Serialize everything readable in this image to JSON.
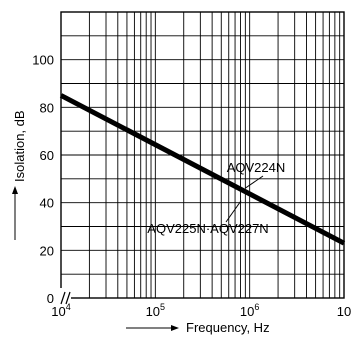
{
  "chart_data": {
    "type": "line",
    "xlabel": "Frequency, Hz",
    "ylabel": "Isolation, dB",
    "x_scale": "log",
    "xlim": [
      10000,
      10000000
    ],
    "ylim": [
      0,
      120
    ],
    "y_ticks": [
      "0",
      "20",
      "40",
      "60",
      "80",
      "100"
    ],
    "x_ticks": [
      {
        "base": "10",
        "exp": "4"
      },
      {
        "base": "10",
        "exp": "5"
      },
      {
        "base": "10",
        "exp": "6"
      },
      {
        "base": "10",
        "exp": ""
      }
    ],
    "grid": true,
    "axis_break": true,
    "series": [
      {
        "x": [
          10000,
          10000000
        ],
        "y": [
          85,
          23
        ]
      }
    ],
    "annotations": [
      {
        "text": "AQV224N",
        "x": 1000000,
        "y": 42
      },
      {
        "text": "AQV225N·AQV227N",
        "x": 700000,
        "y": 45
      }
    ]
  }
}
